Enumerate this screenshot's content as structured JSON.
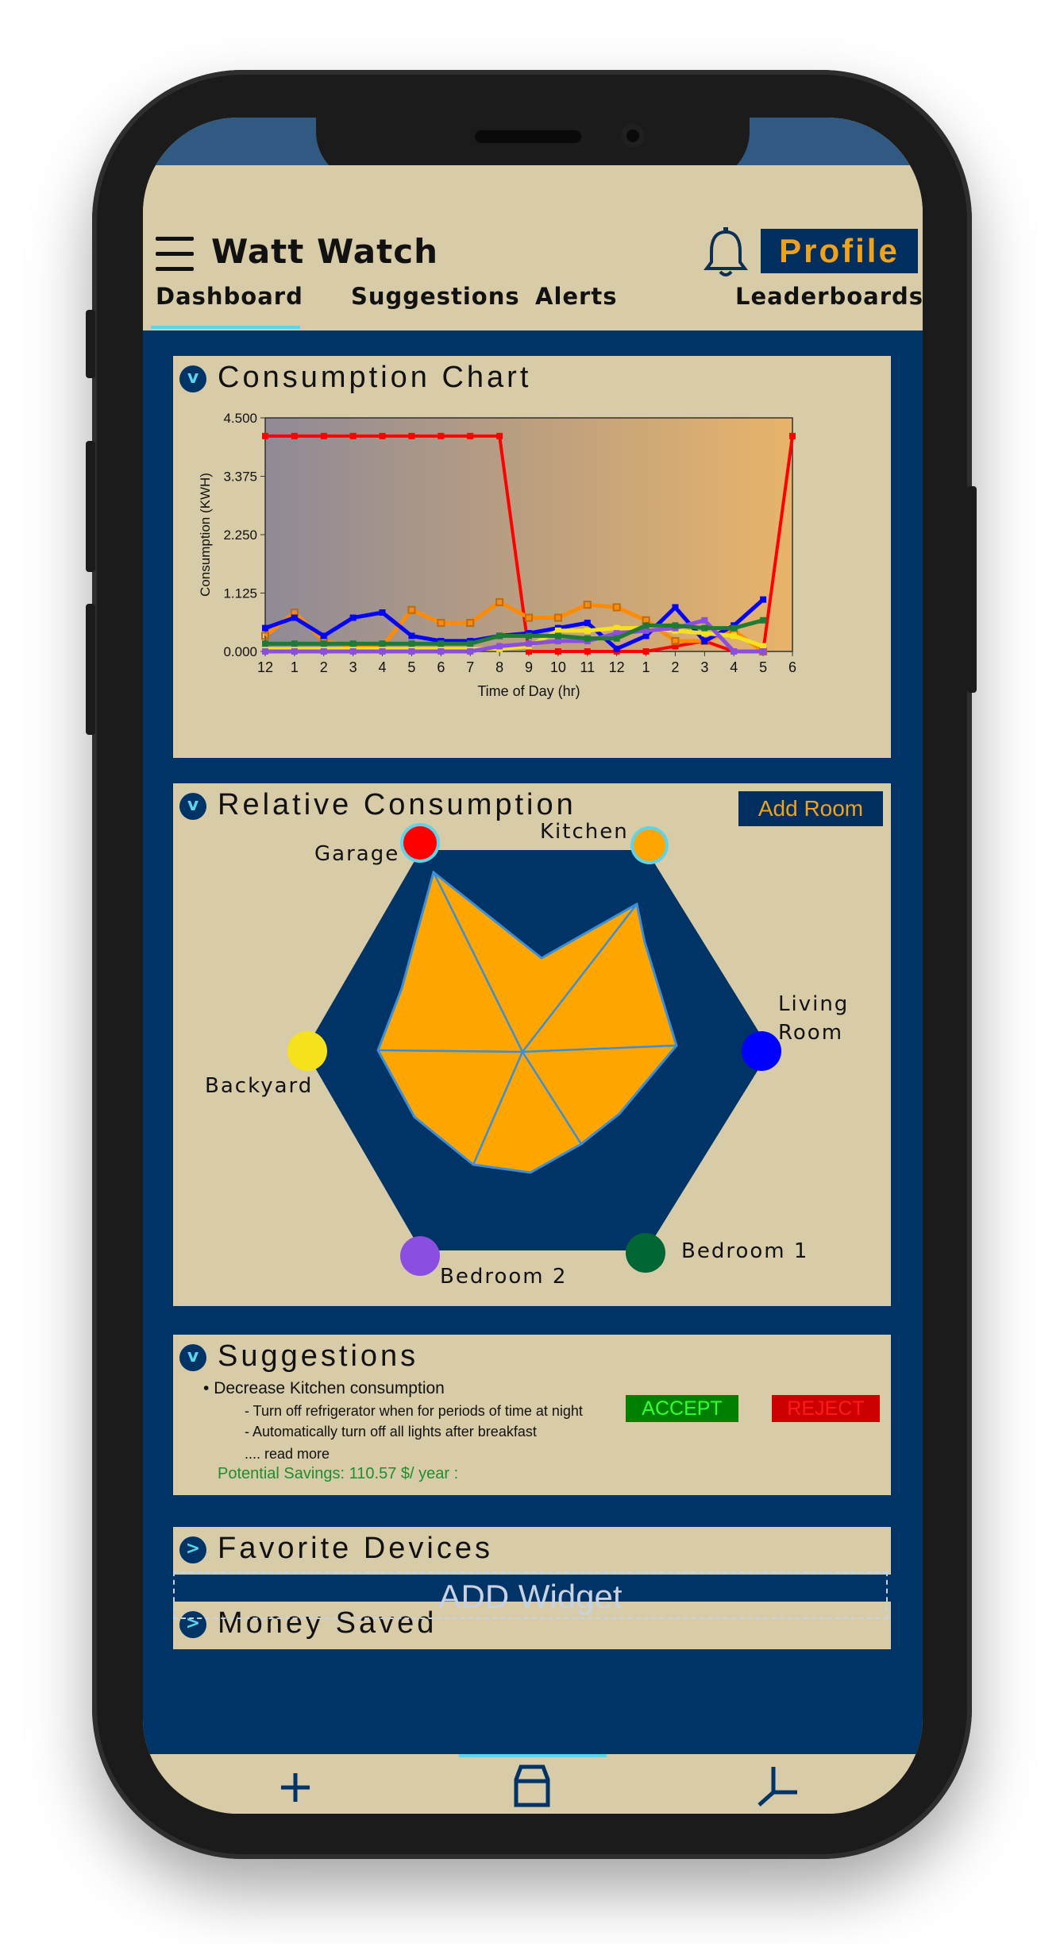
{
  "app": {
    "title": "Watt Watch",
    "profile_label": "Profile"
  },
  "tabs": [
    {
      "label": "Dashboard",
      "active": true
    },
    {
      "label": "Suggestions"
    },
    {
      "label": "Alerts"
    },
    {
      "label": "Leaderboards"
    }
  ],
  "consumption_card": {
    "title": "Consumption Chart"
  },
  "relative_card": {
    "title": "Relative Consumption",
    "add_room_label": "Add Room",
    "rooms": [
      {
        "label": "Garage",
        "color": "#ff0000"
      },
      {
        "label": "Kitchen",
        "color": "#ffa500"
      },
      {
        "label": "Living Room",
        "color": "#0000ff"
      },
      {
        "label": "Bedroom 1",
        "color": "#006633"
      },
      {
        "label": "Bedroom 2",
        "color": "#8a4fe0"
      },
      {
        "label": "Backyard",
        "color": "#f5e21c"
      }
    ]
  },
  "suggestions_card": {
    "title": "Suggestions",
    "main": "Decrease Kitchen consumption",
    "details": [
      "- Turn off refrigerator when for periods of time at night",
      "- Automatically turn off all lights after breakfast"
    ],
    "read_more": ".... read more",
    "savings": "Potential Savings: 110.57 $/ year :",
    "accept_label": "ACCEPT",
    "reject_label": "REJECT"
  },
  "favorites_card": {
    "title": "Favorite Devices"
  },
  "money_card": {
    "title": "Money Saved"
  },
  "add_widget_label": "ADD Widget",
  "chart_data": {
    "type": "line",
    "title": "",
    "xlabel": "Time of Day (hr)",
    "ylabel": "Consumption (KWH)",
    "ylim": [
      0,
      4.5
    ],
    "yticks": [
      "0.000",
      "1.125",
      "2.250",
      "3.375",
      "4.500"
    ],
    "categories": [
      "12",
      "1",
      "2",
      "3",
      "4",
      "5",
      "6",
      "7",
      "8",
      "9",
      "10",
      "11",
      "12",
      "1",
      "2",
      "3",
      "4",
      "5",
      "6"
    ],
    "series": [
      {
        "color": "#ff0000",
        "values": [
          4.15,
          4.15,
          4.15,
          4.15,
          4.15,
          4.15,
          4.15,
          4.15,
          4.15,
          0.0,
          0.0,
          0.0,
          0.0,
          0.0,
          0.1,
          0.2,
          0.0,
          0.0,
          4.15
        ]
      },
      {
        "color": "#ff8c00",
        "values": [
          0.3,
          0.75,
          0.2,
          0.1,
          0.1,
          0.8,
          0.55,
          0.55,
          0.95,
          0.65,
          0.65,
          0.9,
          0.85,
          0.6,
          0.2,
          0.2,
          0.4,
          0.0,
          null
        ]
      },
      {
        "color": "#0000ff",
        "values": [
          0.45,
          0.65,
          0.3,
          0.65,
          0.75,
          0.3,
          0.2,
          0.2,
          0.3,
          0.35,
          0.45,
          0.55,
          0.05,
          0.3,
          0.85,
          0.2,
          0.5,
          1.0,
          null
        ]
      },
      {
        "color": "#f5e21c",
        "values": [
          0.05,
          0.05,
          0.05,
          0.05,
          0.05,
          0.05,
          0.05,
          0.05,
          0.05,
          0.1,
          0.4,
          0.4,
          0.45,
          0.45,
          0.4,
          0.35,
          0.3,
          0.1,
          null
        ]
      },
      {
        "color": "#8a4fe0",
        "values": [
          0.0,
          0.0,
          0.0,
          0.0,
          0.0,
          0.0,
          0.0,
          0.0,
          0.1,
          0.15,
          0.2,
          0.2,
          0.35,
          0.4,
          0.45,
          0.6,
          0.0,
          0.0,
          null
        ]
      },
      {
        "color": "#1e7a34",
        "values": [
          0.15,
          0.15,
          0.15,
          0.15,
          0.15,
          0.15,
          0.15,
          0.15,
          0.3,
          0.3,
          0.3,
          0.25,
          0.25,
          0.5,
          0.5,
          0.45,
          0.45,
          0.6,
          null
        ]
      }
    ],
    "background_gradient": [
      "#8f8a96",
      "#e8b46a"
    ],
    "grid": false,
    "legend": "none"
  }
}
